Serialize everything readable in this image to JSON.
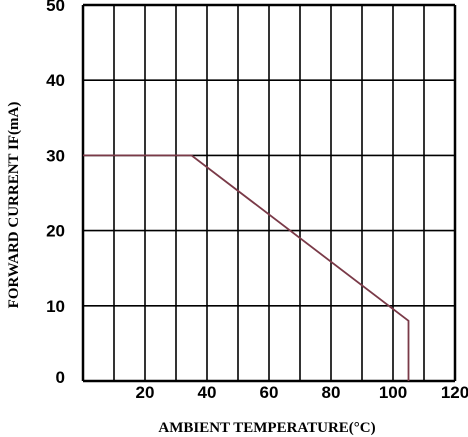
{
  "chart_data": {
    "type": "line",
    "title": "",
    "xlabel": "AMBIENT  TEMPERATURE(°C)",
    "ylabel": "FORWARD  CURRENT  IF(mA)",
    "xlim": [
      0,
      120
    ],
    "ylim": [
      0,
      50
    ],
    "x_ticks": [
      "20",
      "40",
      "60",
      "80",
      "100",
      "120"
    ],
    "y_ticks": [
      "0",
      "10",
      "20",
      "30",
      "40",
      "50"
    ],
    "x_tick_values": [
      20,
      40,
      60,
      80,
      100,
      120
    ],
    "y_tick_values": [
      0,
      10,
      20,
      30,
      40,
      50
    ],
    "x_grid_step": 10,
    "y_grid_step": 10,
    "grid": true,
    "legend": "none",
    "series": [
      {
        "x": [
          0,
          35,
          105,
          105
        ],
        "y": [
          30,
          30,
          8,
          0
        ]
      }
    ],
    "colors": {
      "series": "#7a3a48",
      "grid": "#000000",
      "background": "#ffffff"
    }
  }
}
